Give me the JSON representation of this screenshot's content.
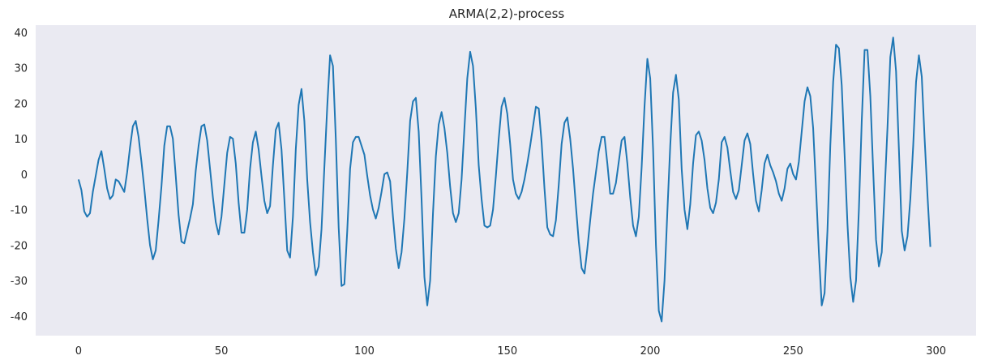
{
  "chart_data": {
    "type": "line",
    "title": "ARMA(2,2)-process",
    "xlabel": "",
    "ylabel": "",
    "xlim": [
      -15,
      314
    ],
    "ylim": [
      -45.5,
      42
    ],
    "xticks": [
      0,
      50,
      100,
      150,
      200,
      250,
      300
    ],
    "yticks": [
      -40,
      -30,
      -20,
      -10,
      0,
      10,
      20,
      30,
      40
    ],
    "grid": false,
    "colors": {
      "background": "#eaeaf2",
      "line": "#1f77b4"
    },
    "series": [
      {
        "x_start": 0,
        "x_step": 1,
        "values": [
          -1.5,
          -4.5,
          -10.5,
          -12,
          -11,
          -5,
          -0.5,
          4,
          6.5,
          1.5,
          -4,
          -7,
          -6,
          -1.5,
          -2,
          -3.5,
          -5,
          0.5,
          7.5,
          13.5,
          15,
          10.5,
          3.5,
          -4,
          -12.5,
          -20,
          -24,
          -21.5,
          -13,
          -3.5,
          8,
          13.5,
          13.5,
          10,
          -0.5,
          -11.5,
          -19,
          -19.5,
          -16,
          -12.5,
          -8.5,
          1,
          8,
          13.5,
          14,
          9.5,
          1.5,
          -6.5,
          -13.5,
          -17,
          -12,
          -3,
          6,
          10.5,
          10,
          3,
          -8,
          -16.5,
          -16.5,
          -10,
          1.5,
          9,
          12,
          7,
          -0.5,
          -7.5,
          -11,
          -9,
          2.5,
          12.5,
          14.5,
          7,
          -7,
          -21.5,
          -23.5,
          -12,
          7,
          19.5,
          24,
          15,
          -1.5,
          -13.5,
          -22,
          -28.5,
          -26,
          -15.5,
          2,
          19,
          33.5,
          30.5,
          10,
          -15,
          -31.5,
          -31,
          -16,
          1.5,
          9,
          10.5,
          10.5,
          8,
          5.5,
          -0.5,
          -6,
          -10,
          -12.5,
          -9.5,
          -5,
          0,
          0.5,
          -2,
          -12,
          -21,
          -26.5,
          -22,
          -12.5,
          0.5,
          15,
          20.5,
          21.5,
          12,
          -7,
          -29,
          -37,
          -30,
          -11,
          5,
          14,
          17.5,
          13,
          6,
          -3.5,
          -11,
          -13.5,
          -11,
          -1.5,
          13,
          27,
          34.5,
          30.5,
          18.5,
          2.5,
          -7,
          -14.5,
          -15,
          -14.5,
          -10,
          -0.5,
          10,
          19,
          21.5,
          17,
          8.5,
          -1.5,
          -5.5,
          -7,
          -5,
          -1.5,
          3,
          8,
          13.5,
          19,
          18.5,
          9,
          -4,
          -15,
          -17,
          -17.5,
          -13,
          -3,
          8.5,
          14.5,
          16,
          10,
          1.5,
          -9,
          -19,
          -26.5,
          -28,
          -21,
          -13,
          -5.5,
          0.5,
          6.5,
          10.5,
          10.5,
          3,
          -5.5,
          -5.5,
          -2.5,
          3.5,
          9.5,
          10.5,
          3,
          -6.5,
          -14.5,
          -17.5,
          -12,
          2,
          19,
          32.5,
          27,
          7,
          -20,
          -38.5,
          -41.5,
          -30,
          -10.5,
          8,
          23,
          28,
          21,
          1.5,
          -10,
          -15.5,
          -8.5,
          3,
          11,
          12,
          9.5,
          4,
          -4,
          -9.5,
          -11,
          -8,
          -1.5,
          9,
          10.5,
          7.5,
          1,
          -5,
          -7,
          -4.5,
          2.5,
          9.5,
          11.5,
          8.5,
          0,
          -7.5,
          -10.5,
          -4.5,
          3,
          5.5,
          2.5,
          0.5,
          -2,
          -5.5,
          -7.5,
          -4,
          1.5,
          3,
          0,
          -1.5,
          3.5,
          12,
          20.5,
          24.5,
          22,
          13,
          -4,
          -22,
          -37,
          -33.5,
          -16,
          8,
          26,
          36.5,
          35.5,
          25,
          5.5,
          -14,
          -29,
          -36,
          -30,
          -10,
          15,
          35,
          35,
          22,
          1,
          -18.5,
          -26,
          -22,
          -5,
          13,
          33,
          38.5,
          29,
          7,
          -16,
          -21.5,
          -17.5,
          -7,
          8,
          26,
          33.5,
          27.5,
          10,
          -6,
          -20.5
        ]
      }
    ]
  }
}
